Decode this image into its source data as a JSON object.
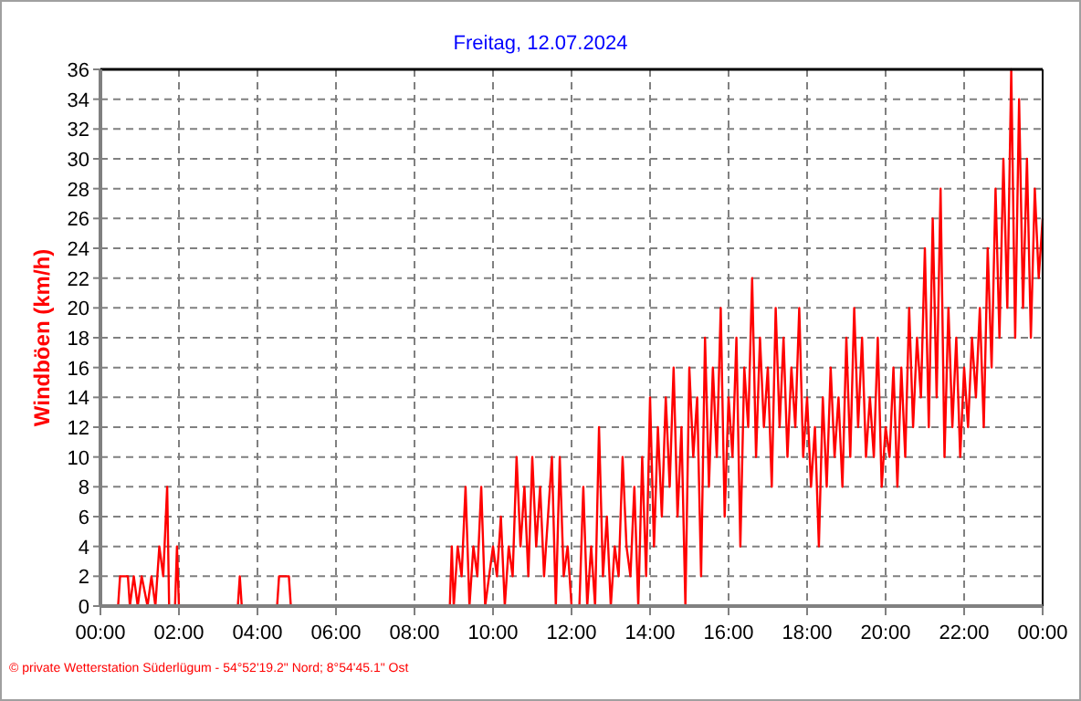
{
  "chart_data": {
    "type": "line",
    "title": "Freitag, 12.07.2024",
    "ylabel": "Windböen (km/h)",
    "annotations": [
      "© private Wetterstation Süderlügum - 54°52'19.2\" Nord; 8°54'45.1\" Ost"
    ],
    "xlim": [
      0,
      24
    ],
    "xticks": [
      {
        "value": 0,
        "label": "00:00"
      },
      {
        "value": 2,
        "label": "02:00"
      },
      {
        "value": 4,
        "label": "04:00"
      },
      {
        "value": 6,
        "label": "06:00"
      },
      {
        "value": 8,
        "label": "08:00"
      },
      {
        "value": 10,
        "label": "10:00"
      },
      {
        "value": 12,
        "label": "12:00"
      },
      {
        "value": 14,
        "label": "14:00"
      },
      {
        "value": 16,
        "label": "16:00"
      },
      {
        "value": 18,
        "label": "18:00"
      },
      {
        "value": 20,
        "label": "20:00"
      },
      {
        "value": 22,
        "label": "22:00"
      },
      {
        "value": 24,
        "label": "00:00"
      }
    ],
    "ylim": [
      0,
      36
    ],
    "yticks": [
      0,
      2,
      4,
      6,
      8,
      10,
      12,
      14,
      16,
      18,
      20,
      22,
      24,
      26,
      28,
      30,
      32,
      34,
      36
    ],
    "grid": true,
    "marker": "none",
    "line_style": "solid",
    "series": [
      {
        "color": "#ff0000",
        "x": [
          0,
          0.45,
          0.5,
          0.7,
          0.75,
          0.85,
          0.95,
          1.05,
          1.2,
          1.3,
          1.4,
          1.5,
          1.6,
          1.7,
          1.75,
          1.9,
          1.95,
          2.0,
          3.5,
          3.55,
          3.6,
          4.5,
          4.55,
          4.8,
          4.85,
          8.9,
          8.95,
          9.0,
          9.1,
          9.2,
          9.3,
          9.4,
          9.5,
          9.6,
          9.7,
          9.8,
          9.9,
          10.0,
          10.1,
          10.2,
          10.3,
          10.4,
          10.5,
          10.6,
          10.7,
          10.8,
          10.9,
          11.0,
          11.1,
          11.2,
          11.3,
          11.4,
          11.5,
          11.6,
          11.7,
          11.8,
          11.9,
          12.0,
          12.2,
          12.3,
          12.4,
          12.5,
          12.6,
          12.7,
          12.8,
          12.9,
          13.0,
          13.1,
          13.2,
          13.3,
          13.4,
          13.5,
          13.6,
          13.7,
          13.8,
          13.9,
          14.0,
          14.1,
          14.2,
          14.3,
          14.4,
          14.5,
          14.6,
          14.7,
          14.8,
          14.9,
          15.0,
          15.1,
          15.2,
          15.3,
          15.4,
          15.5,
          15.6,
          15.7,
          15.8,
          15.9,
          16.0,
          16.1,
          16.2,
          16.3,
          16.4,
          16.5,
          16.6,
          16.7,
          16.8,
          16.9,
          17.0,
          17.1,
          17.2,
          17.3,
          17.4,
          17.5,
          17.6,
          17.7,
          17.8,
          17.9,
          18.0,
          18.1,
          18.2,
          18.3,
          18.4,
          18.5,
          18.6,
          18.7,
          18.8,
          18.9,
          19.0,
          19.1,
          19.2,
          19.3,
          19.4,
          19.5,
          19.6,
          19.7,
          19.8,
          19.9,
          20.0,
          20.1,
          20.2,
          20.3,
          20.4,
          20.5,
          20.6,
          20.7,
          20.8,
          20.9,
          21.0,
          21.1,
          21.2,
          21.3,
          21.4,
          21.5,
          21.6,
          21.7,
          21.8,
          21.9,
          22.0,
          22.1,
          22.2,
          22.3,
          22.4,
          22.5,
          22.6,
          22.7,
          22.8,
          22.9,
          23.0,
          23.1,
          23.2,
          23.3,
          23.4,
          23.5,
          23.6,
          23.7,
          23.8,
          23.9,
          24.0
        ],
        "values": [
          0,
          0,
          2,
          2,
          0,
          2,
          0,
          2,
          0,
          2,
          0,
          4,
          2,
          8,
          0,
          0,
          4,
          0,
          0,
          2,
          0,
          0,
          2,
          2,
          0,
          0,
          4,
          0,
          4,
          2,
          8,
          0,
          4,
          2,
          8,
          0,
          2,
          4,
          2,
          6,
          0,
          4,
          2,
          10,
          4,
          8,
          2,
          10,
          4,
          8,
          2,
          6,
          10,
          0,
          10,
          2,
          4,
          0,
          0,
          8,
          0,
          4,
          0,
          12,
          2,
          6,
          0,
          4,
          2,
          10,
          4,
          2,
          8,
          0,
          10,
          2,
          14,
          4,
          12,
          6,
          14,
          8,
          16,
          6,
          12,
          0,
          16,
          10,
          14,
          2,
          18,
          8,
          16,
          10,
          20,
          6,
          14,
          10,
          18,
          4,
          16,
          12,
          22,
          10,
          18,
          12,
          16,
          8,
          20,
          12,
          18,
          10,
          16,
          12,
          20,
          10,
          14,
          8,
          12,
          4,
          14,
          8,
          16,
          10,
          14,
          8,
          18,
          10,
          20,
          12,
          18,
          10,
          14,
          10,
          18,
          8,
          12,
          10,
          16,
          8,
          16,
          10,
          20,
          12,
          18,
          14,
          24,
          12,
          26,
          14,
          28,
          10,
          20,
          12,
          18,
          10,
          16,
          12,
          18,
          14,
          20,
          12,
          24,
          16,
          28,
          18,
          30,
          20,
          36,
          18,
          34,
          20,
          30,
          18,
          28,
          22,
          26
        ]
      }
    ]
  }
}
